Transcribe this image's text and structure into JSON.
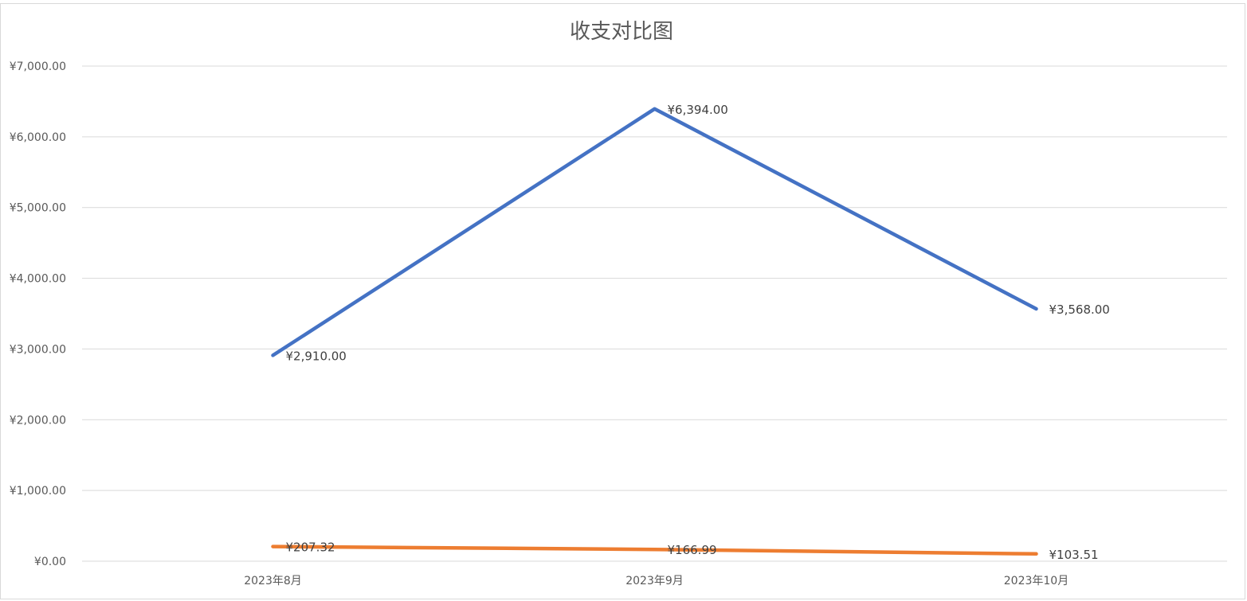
{
  "chart_data": {
    "type": "line",
    "title": "收支对比图",
    "categories": [
      "2023年8月",
      "2023年9月",
      "2023年10月"
    ],
    "y_ticks": [
      "¥0.00",
      "¥1,000.00",
      "¥2,000.00",
      "¥3,000.00",
      "¥4,000.00",
      "¥5,000.00",
      "¥6,000.00",
      "¥7,000.00"
    ],
    "ylim": [
      0,
      7000
    ],
    "grid": true,
    "legend": "none",
    "series": [
      {
        "color": "#4472C4",
        "values": [
          2910,
          6394,
          3568
        ],
        "labels": [
          "¥2,910.00",
          "¥6,394.00",
          "¥3,568.00"
        ]
      },
      {
        "color": "#ED7D31",
        "values": [
          207.32,
          166.99,
          103.51
        ],
        "labels": [
          "¥207.32",
          "¥166.99",
          "¥103.51"
        ]
      }
    ]
  }
}
